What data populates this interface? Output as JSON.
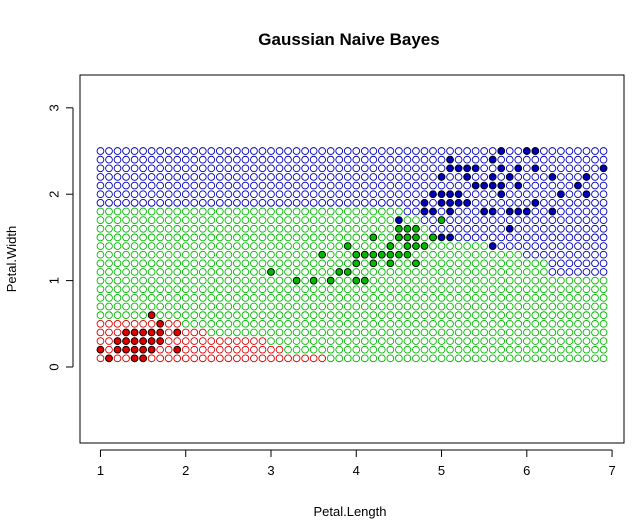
{
  "chart_data": {
    "type": "scatter",
    "title": "Gaussian Naive Bayes",
    "xlabel": "Petal.Length",
    "ylabel": "Petal.Width",
    "xlim": [
      0.76,
      7.14
    ],
    "ylim": [
      -0.88,
      3.38
    ],
    "xticks": [
      1,
      2,
      3,
      4,
      5,
      6,
      7
    ],
    "yticks": [
      0,
      1,
      2,
      3
    ],
    "grid": false,
    "legend": "none",
    "colors": {
      "setosa": "#dd0000",
      "versicolor": "#00bb00",
      "virginica": "#0000bb"
    },
    "grid_points": {
      "x_start": 1.0,
      "x_step": 0.1,
      "x_count": 60,
      "y_start": 0.1,
      "y_step": 0.1,
      "y_count": 25,
      "regions": [
        {
          "class": "setosa",
          "rows": [
            [
              0.1,
              1.0,
              2.6
            ],
            [
              0.2,
              1.0,
              2.6
            ],
            [
              0.3,
              1.0,
              2.6
            ],
            [
              0.4,
              1.0,
              2.2
            ],
            [
              0.5,
              1.0,
              1.9
            ]
          ]
        },
        {
          "class": "setosa",
          "rows": [
            [
              0.1,
              2.7,
              3.6
            ],
            [
              0.2,
              2.7,
              3.1
            ],
            [
              0.3,
              2.7,
              2.9
            ]
          ]
        },
        {
          "class": "virginica",
          "rows": [
            [
              1.1,
              6.3,
              6.9
            ],
            [
              1.2,
              6.3,
              6.9
            ],
            [
              1.3,
              6.0,
              6.9
            ],
            [
              1.4,
              5.6,
              6.9
            ],
            [
              1.5,
              5.2,
              6.9
            ],
            [
              1.6,
              4.9,
              6.9
            ],
            [
              1.7,
              4.8,
              6.9
            ],
            [
              1.8,
              4.6,
              6.9
            ],
            [
              1.9,
              1.0,
              6.9
            ],
            [
              2.0,
              1.0,
              6.9
            ],
            [
              2.1,
              1.0,
              6.9
            ],
            [
              2.2,
              1.0,
              6.9
            ],
            [
              2.3,
              1.0,
              6.9
            ],
            [
              2.4,
              1.0,
              6.9
            ],
            [
              2.5,
              1.0,
              6.9
            ]
          ]
        }
      ],
      "default_class": "versicolor"
    },
    "series": [
      {
        "class": "setosa",
        "points": [
          [
            1.4,
            0.2
          ],
          [
            1.3,
            0.2
          ],
          [
            1.5,
            0.2
          ],
          [
            1.7,
            0.4
          ],
          [
            1.4,
            0.3
          ],
          [
            1.5,
            0.1
          ],
          [
            1.1,
            0.1
          ],
          [
            1.2,
            0.2
          ],
          [
            1.3,
            0.4
          ],
          [
            1.7,
            0.3
          ],
          [
            1.0,
            0.2
          ],
          [
            1.9,
            0.2
          ],
          [
            1.6,
            0.2
          ],
          [
            1.6,
            0.4
          ],
          [
            1.2,
            0.3
          ],
          [
            1.3,
            0.3
          ],
          [
            1.6,
            0.6
          ],
          [
            1.9,
            0.4
          ],
          [
            1.4,
            0.1
          ],
          [
            1.6,
            0.3
          ],
          [
            1.5,
            0.3
          ],
          [
            1.5,
            0.4
          ],
          [
            1.4,
            0.4
          ],
          [
            1.7,
            0.5
          ]
        ]
      },
      {
        "class": "versicolor",
        "points": [
          [
            4.7,
            1.4
          ],
          [
            4.5,
            1.5
          ],
          [
            4.9,
            1.5
          ],
          [
            4.0,
            1.3
          ],
          [
            4.6,
            1.5
          ],
          [
            4.5,
            1.3
          ],
          [
            3.3,
            1.0
          ],
          [
            4.6,
            1.3
          ],
          [
            3.9,
            1.4
          ],
          [
            3.5,
            1.0
          ],
          [
            4.2,
            1.5
          ],
          [
            4.0,
            1.0
          ],
          [
            3.6,
            1.3
          ],
          [
            4.4,
            1.4
          ],
          [
            4.1,
            1.0
          ],
          [
            3.9,
            1.1
          ],
          [
            4.8,
            1.8
          ],
          [
            4.7,
            1.2
          ],
          [
            4.3,
            1.3
          ],
          [
            4.4,
            1.4
          ],
          [
            5.0,
            1.7
          ],
          [
            3.8,
            1.1
          ],
          [
            3.7,
            1.0
          ],
          [
            3.0,
            1.1
          ],
          [
            4.1,
            1.3
          ],
          [
            4.2,
            1.2
          ],
          [
            4.5,
            1.6
          ],
          [
            4.6,
            1.4
          ],
          [
            4.0,
            1.2
          ],
          [
            4.4,
            1.3
          ],
          [
            4.7,
            1.6
          ],
          [
            4.9,
            1.5
          ],
          [
            4.4,
            1.2
          ],
          [
            4.3,
            1.3
          ],
          [
            4.1,
            1.3
          ],
          [
            4.8,
            1.4
          ],
          [
            4.2,
            1.3
          ],
          [
            4.5,
            1.5
          ],
          [
            4.6,
            1.5
          ],
          [
            4.7,
            1.5
          ],
          [
            4.0,
            1.3
          ],
          [
            4.5,
            1.5
          ],
          [
            4.6,
            1.6
          ],
          [
            4.9,
            1.5
          ]
        ]
      },
      {
        "class": "virginica",
        "points": [
          [
            6.0,
            2.5
          ],
          [
            5.1,
            1.9
          ],
          [
            5.9,
            2.1
          ],
          [
            5.6,
            1.8
          ],
          [
            5.8,
            2.2
          ],
          [
            6.6,
            2.1
          ],
          [
            4.5,
            1.7
          ],
          [
            6.3,
            1.8
          ],
          [
            5.8,
            1.8
          ],
          [
            6.1,
            2.5
          ],
          [
            5.1,
            2.0
          ],
          [
            5.3,
            1.9
          ],
          [
            5.5,
            2.1
          ],
          [
            5.0,
            2.0
          ],
          [
            5.1,
            2.4
          ],
          [
            5.3,
            2.3
          ],
          [
            5.5,
            1.8
          ],
          [
            6.7,
            2.2
          ],
          [
            6.9,
            2.3
          ],
          [
            5.0,
            1.5
          ],
          [
            5.7,
            2.3
          ],
          [
            4.9,
            2.0
          ],
          [
            6.7,
            2.0
          ],
          [
            4.9,
            1.8
          ],
          [
            5.7,
            2.1
          ],
          [
            6.0,
            1.8
          ],
          [
            4.8,
            1.8
          ],
          [
            5.6,
            2.1
          ],
          [
            5.8,
            1.6
          ],
          [
            6.1,
            1.9
          ],
          [
            6.4,
            2.0
          ],
          [
            5.6,
            2.2
          ],
          [
            5.1,
            1.5
          ],
          [
            5.6,
            1.4
          ],
          [
            6.1,
            2.3
          ],
          [
            5.6,
            2.4
          ],
          [
            5.5,
            1.8
          ],
          [
            5.4,
            2.1
          ],
          [
            5.6,
            2.4
          ],
          [
            5.1,
            2.3
          ],
          [
            5.9,
            2.3
          ],
          [
            5.7,
            2.5
          ],
          [
            5.2,
            2.3
          ],
          [
            5.0,
            1.9
          ],
          [
            5.4,
            2.3
          ],
          [
            5.1,
            1.8
          ],
          [
            5.2,
            2.0
          ],
          [
            4.8,
            1.9
          ],
          [
            5.0,
            2.2
          ],
          [
            5.9,
            1.8
          ],
          [
            5.3,
            2.2
          ],
          [
            5.2,
            1.9
          ],
          [
            5.7,
            2.0
          ],
          [
            6.3,
            2.2
          ]
        ]
      }
    ]
  }
}
